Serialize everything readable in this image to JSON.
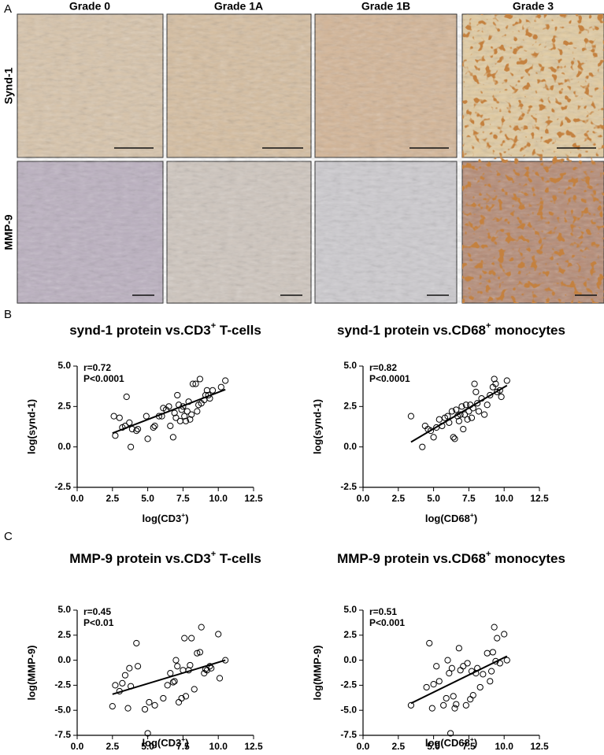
{
  "figure": {
    "panel_labels": [
      "A",
      "B",
      "C"
    ],
    "columns": [
      "Grade 0",
      "Grade 1A",
      "Grade 1B",
      "Grade 3"
    ],
    "rows": [
      "Synd-1",
      "MMP-9"
    ]
  },
  "chart_data": [
    {
      "type": "scatter",
      "title": {
        "main": "synd-1 protein vs.CD3",
        "sup": "+",
        "rest": " T-cells"
      },
      "xlabel": {
        "main": "log(CD3",
        "sup": "+",
        "rest": ")"
      },
      "ylabel": "log(synd-1)",
      "annotations": [
        "r=0.72",
        "P<0.0001"
      ],
      "x": [
        2.6,
        2.7,
        3.0,
        3.2,
        3.4,
        3.5,
        3.7,
        3.8,
        3.9,
        4.2,
        4.3,
        4.9,
        5.0,
        5.4,
        5.8,
        6.0,
        6.3,
        6.5,
        6.6,
        6.8,
        6.9,
        7.0,
        7.1,
        7.2,
        7.3,
        7.4,
        7.5,
        7.6,
        7.7,
        7.8,
        7.9,
        8.0,
        8.1,
        8.2,
        8.4,
        8.5,
        8.6,
        8.7,
        8.8,
        9.0,
        9.1,
        9.2,
        9.3,
        9.4,
        9.6,
        10.2,
        10.5,
        6.1,
        5.5
      ],
      "values": [
        1.9,
        0.7,
        1.8,
        1.2,
        1.3,
        3.1,
        1.5,
        0.0,
        1.1,
        1.0,
        1.1,
        1.9,
        0.5,
        1.2,
        1.9,
        1.9,
        2.3,
        2.5,
        1.3,
        0.6,
        2.1,
        1.8,
        3.2,
        2.6,
        1.6,
        2.3,
        2.5,
        1.9,
        1.6,
        2.2,
        2.8,
        1.7,
        2.0,
        3.9,
        3.9,
        2.2,
        2.6,
        4.2,
        2.7,
        2.9,
        3.2,
        3.5,
        3.2,
        3.0,
        3.5,
        3.7,
        4.1,
        2.4,
        1.3
      ],
      "fit": {
        "x": [
          2.5,
          10.5
        ],
        "y": [
          0.85,
          3.55
        ]
      },
      "color": "#000000",
      "xlim": [
        0,
        12.5
      ],
      "xticks": [
        {
          "value": 0,
          "label": "0.0"
        },
        2.5,
        {
          "value": 5,
          "label": "5.0"
        },
        7.5,
        {
          "value": 10,
          "label": "10.0"
        },
        12.5
      ],
      "ylim": [
        -2.5,
        5
      ],
      "yticks": [
        -2.5,
        {
          "value": 0,
          "label": "0.0"
        },
        2.5,
        {
          "value": 5,
          "label": "5.0"
        }
      ]
    },
    {
      "type": "scatter",
      "title": {
        "main": "synd-1 protein vs.CD68",
        "sup": "+",
        "rest": " monocytes"
      },
      "xlabel": {
        "main": "log(CD68",
        "sup": "+",
        "rest": ")"
      },
      "ylabel": "log(synd-1)",
      "annotations": [
        "r=0.82",
        "P<0.0001"
      ],
      "x": [
        3.4,
        4.2,
        4.4,
        4.6,
        4.8,
        5.0,
        5.2,
        5.4,
        5.6,
        5.8,
        6.0,
        6.1,
        6.3,
        6.4,
        6.5,
        6.6,
        6.7,
        6.8,
        7.0,
        7.1,
        7.2,
        7.3,
        7.4,
        7.5,
        7.6,
        7.7,
        7.8,
        7.9,
        8.0,
        8.1,
        8.2,
        8.4,
        8.6,
        8.8,
        9.0,
        9.2,
        9.3,
        9.4,
        9.5,
        9.7,
        9.8,
        10.2,
        6.9
      ],
      "values": [
        1.9,
        0.0,
        1.3,
        1.1,
        1.0,
        0.6,
        1.2,
        1.7,
        1.3,
        1.8,
        1.9,
        1.5,
        2.2,
        0.6,
        0.5,
        2.3,
        1.9,
        1.6,
        2.5,
        1.1,
        2.0,
        2.6,
        1.7,
        2.2,
        2.6,
        1.8,
        2.4,
        3.9,
        3.4,
        2.7,
        2.2,
        3.0,
        2.0,
        2.6,
        3.2,
        3.7,
        4.2,
        3.9,
        3.4,
        3.5,
        3.1,
        4.1,
        2.0
      ],
      "fit": {
        "x": [
          3.4,
          10.2
        ],
        "y": [
          0.3,
          3.8
        ]
      },
      "color": "#000000",
      "xlim": [
        0,
        12.5
      ],
      "xticks": [
        {
          "value": 0,
          "label": "0.0"
        },
        2.5,
        {
          "value": 5,
          "label": "5.0"
        },
        7.5,
        {
          "value": 10,
          "label": "10.0"
        },
        12.5
      ],
      "ylim": [
        -2.5,
        5
      ],
      "yticks": [
        -2.5,
        {
          "value": 0,
          "label": "0.0"
        },
        2.5,
        {
          "value": 5,
          "label": "5.0"
        }
      ]
    },
    {
      "type": "scatter",
      "title": {
        "main": "MMP-9 protein vs.CD3",
        "sup": "+",
        "rest": " T-cells"
      },
      "xlabel": {
        "main": "log(CD3",
        "sup": "+",
        "rest": ")"
      },
      "ylabel": "log(MMP-9)",
      "annotations": [
        "r=0.45",
        "P<0.01"
      ],
      "x": [
        2.5,
        2.7,
        3.0,
        3.2,
        3.4,
        3.6,
        3.7,
        3.8,
        4.2,
        4.3,
        4.8,
        5.0,
        5.1,
        5.5,
        6.1,
        6.4,
        6.6,
        6.8,
        7.0,
        7.1,
        7.2,
        7.4,
        7.5,
        7.6,
        7.7,
        7.9,
        8.0,
        8.1,
        8.3,
        8.5,
        8.7,
        8.8,
        9.0,
        9.2,
        9.4,
        9.5,
        10.0,
        10.1,
        10.5,
        6.9,
        9.1
      ],
      "values": [
        -4.6,
        -2.5,
        -3.1,
        -2.3,
        -1.5,
        -4.8,
        -0.8,
        -2.6,
        1.7,
        -0.6,
        -4.9,
        -7.3,
        -4.2,
        -4.5,
        -3.8,
        -2.5,
        -1.3,
        -2.2,
        0.0,
        -0.6,
        -4.2,
        -3.8,
        -1.0,
        2.2,
        -3.6,
        -1.0,
        -0.5,
        2.2,
        -2.9,
        0.7,
        0.8,
        3.3,
        -1.3,
        -1.0,
        -0.6,
        -0.8,
        2.6,
        -1.8,
        0.0,
        -2.1,
        -0.9
      ],
      "fit": {
        "x": [
          2.5,
          10.5
        ],
        "y": [
          -3.4,
          0.0
        ]
      },
      "color": "#000000",
      "xlim": [
        0,
        12.5
      ],
      "xticks": [
        {
          "value": 0,
          "label": "0.0"
        },
        2.5,
        {
          "value": 5,
          "label": "5.0"
        },
        7.5,
        {
          "value": 10,
          "label": "10.0"
        },
        12.5
      ],
      "ylim": [
        -7.5,
        5
      ],
      "yticks": [
        -7.5,
        {
          "value": -5,
          "label": "-5.0"
        },
        -2.5,
        {
          "value": 0,
          "label": "0.0"
        },
        2.5,
        {
          "value": 5,
          "label": "5.0"
        }
      ]
    },
    {
      "type": "scatter",
      "title": {
        "main": "MMP-9 protein vs.CD68",
        "sup": "+",
        "rest": " monocytes"
      },
      "xlabel": {
        "main": "log(CD68",
        "sup": "+",
        "rest": ")"
      },
      "ylabel": "log(MMP-9)",
      "annotations": [
        "r=0.51",
        "P<0.001"
      ],
      "x": [
        3.4,
        4.5,
        4.7,
        4.9,
        5.0,
        5.2,
        5.4,
        5.7,
        5.9,
        6.0,
        6.1,
        6.2,
        6.3,
        6.4,
        6.5,
        6.6,
        6.8,
        6.9,
        7.1,
        7.3,
        7.4,
        7.6,
        7.7,
        7.8,
        8.0,
        8.1,
        8.3,
        8.5,
        8.8,
        9.0,
        9.2,
        9.3,
        9.4,
        9.5,
        9.7,
        10.0,
        10.2,
        9.1
      ],
      "values": [
        -4.5,
        -2.7,
        1.7,
        -4.8,
        -2.4,
        -0.6,
        -2.1,
        -4.5,
        -3.8,
        0.0,
        -1.3,
        -7.3,
        -0.8,
        -3.6,
        -4.8,
        -4.4,
        1.2,
        -1.0,
        -0.6,
        -4.5,
        -0.3,
        -3.9,
        -1.1,
        -3.5,
        -1.3,
        -0.8,
        -2.7,
        -1.4,
        0.7,
        -2.1,
        0.8,
        3.3,
        -0.1,
        2.2,
        -0.3,
        2.6,
        0.0,
        -1.1
      ],
      "fit": {
        "x": [
          3.4,
          10.2
        ],
        "y": [
          -4.3,
          0.4
        ]
      },
      "color": "#000000",
      "xlim": [
        0,
        12.5
      ],
      "xticks": [
        {
          "value": 0,
          "label": "0.0"
        },
        2.5,
        {
          "value": 5,
          "label": "5.0"
        },
        7.5,
        {
          "value": 10,
          "label": "10.0"
        },
        12.5
      ],
      "ylim": [
        -7.5,
        5
      ],
      "yticks": [
        -7.5,
        {
          "value": -5,
          "label": "-5.0"
        },
        -2.5,
        {
          "value": 0,
          "label": "0.0"
        },
        2.5,
        {
          "value": 5,
          "label": "5.0"
        }
      ]
    }
  ]
}
